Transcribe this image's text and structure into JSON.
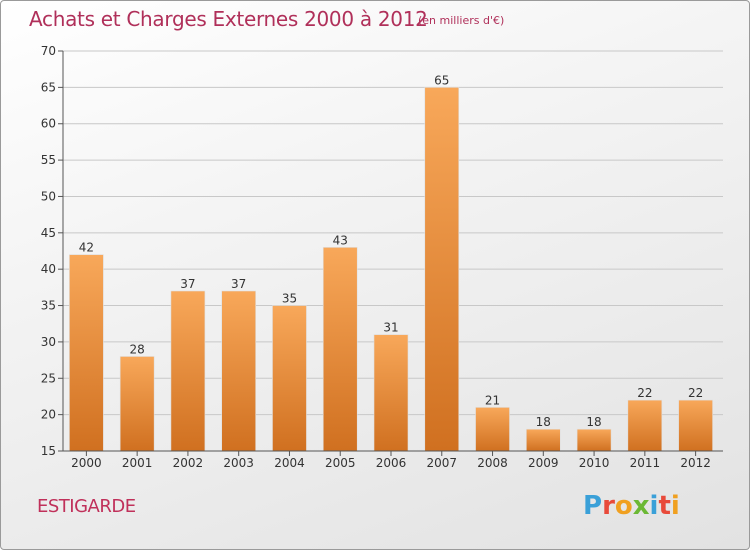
{
  "header": {
    "title": "Achats et Charges Externes 2000 à 2012",
    "unit": "(en milliers d'€)"
  },
  "footer": {
    "town": "ESTIGARDE",
    "brand": "Proxiti",
    "brand_letters": [
      {
        "ch": "P",
        "color": "#3aa0d8"
      },
      {
        "ch": "r",
        "color": "#e84a3a"
      },
      {
        "ch": "o",
        "color": "#f0a020"
      },
      {
        "ch": "x",
        "color": "#6bb834"
      },
      {
        "ch": "i",
        "color": "#3aa0d8"
      },
      {
        "ch": "t",
        "color": "#e84a3a"
      },
      {
        "ch": "i",
        "color": "#f0a020"
      }
    ]
  },
  "chart_data": {
    "type": "bar",
    "categories": [
      "2000",
      "2001",
      "2002",
      "2003",
      "2004",
      "2005",
      "2006",
      "2007",
      "2008",
      "2009",
      "2010",
      "2011",
      "2012"
    ],
    "values": [
      42,
      28,
      37,
      37,
      35,
      43,
      31,
      65,
      21,
      18,
      18,
      22,
      22
    ],
    "ylim": [
      15,
      70
    ],
    "yticks": [
      15,
      20,
      25,
      30,
      35,
      40,
      45,
      50,
      55,
      60,
      65,
      70
    ],
    "grid": true,
    "data_labels": true,
    "colors": {
      "bar_top": "#f8a85a",
      "bar_bottom": "#d07020",
      "grid": "#c8c8c8",
      "axis": "#555555",
      "text": "#333333"
    }
  }
}
